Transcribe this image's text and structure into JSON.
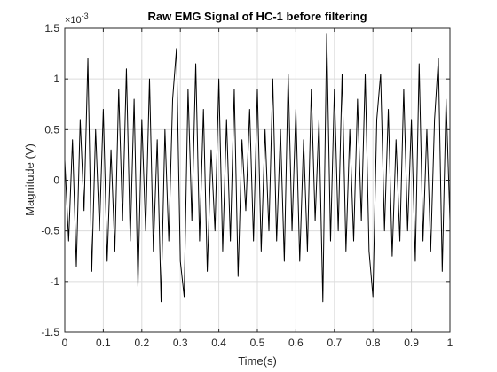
{
  "chart_data": {
    "type": "line",
    "title": "Raw EMG Signal of HC-1 before filtering",
    "xlabel": "Time(s)",
    "ylabel": "Magnitude (V)",
    "y_multiplier": {
      "base": "×10",
      "exponent": "-3"
    },
    "x": [
      0,
      0.01,
      0.02,
      0.03,
      0.04,
      0.05,
      0.06,
      0.07,
      0.08,
      0.09,
      0.1,
      0.11,
      0.12,
      0.13,
      0.14,
      0.15,
      0.16,
      0.17,
      0.18,
      0.19,
      0.2,
      0.21,
      0.22,
      0.23,
      0.24,
      0.25,
      0.26,
      0.27,
      0.28,
      0.29,
      0.3,
      0.31,
      0.32,
      0.33,
      0.34,
      0.35,
      0.36,
      0.37,
      0.38,
      0.39,
      0.4,
      0.41,
      0.42,
      0.43,
      0.44,
      0.45,
      0.46,
      0.47,
      0.48,
      0.49,
      0.5,
      0.51,
      0.52,
      0.53,
      0.54,
      0.55,
      0.56,
      0.57,
      0.58,
      0.59,
      0.6,
      0.61,
      0.62,
      0.63,
      0.64,
      0.65,
      0.66,
      0.67,
      0.68,
      0.69,
      0.7,
      0.71,
      0.72,
      0.73,
      0.74,
      0.75,
      0.76,
      0.77,
      0.78,
      0.79,
      0.8,
      0.81,
      0.82,
      0.83,
      0.84,
      0.85,
      0.86,
      0.87,
      0.88,
      0.89,
      0.9,
      0.91,
      0.92,
      0.93,
      0.94,
      0.95,
      0.96,
      0.97,
      0.98,
      0.99,
      1
    ],
    "series": [
      {
        "name": "EMG",
        "color": "#000000",
        "values": [
          0.2,
          -0.6,
          0.4,
          -0.85,
          0.6,
          -0.3,
          1.2,
          -0.9,
          0.5,
          -0.5,
          0.7,
          -0.8,
          0.3,
          -0.7,
          0.9,
          -0.4,
          1.1,
          -0.6,
          0.8,
          -1.05,
          0.6,
          -0.5,
          1.0,
          -0.7,
          0.4,
          -1.2,
          0.5,
          -0.6,
          0.8,
          1.3,
          -0.8,
          -1.15,
          0.9,
          -0.4,
          1.15,
          -0.6,
          0.7,
          -0.9,
          0.3,
          -0.5,
          1.0,
          -0.7,
          0.6,
          -0.6,
          0.9,
          -0.95,
          0.4,
          -0.3,
          0.7,
          -0.6,
          0.9,
          -0.7,
          0.5,
          -0.5,
          1.0,
          -0.6,
          0.5,
          -0.8,
          1.05,
          -0.5,
          0.7,
          -0.8,
          0.4,
          -0.7,
          0.9,
          -0.4,
          0.6,
          -1.2,
          1.45,
          -0.6,
          0.9,
          -0.5,
          1.05,
          -0.7,
          0.5,
          -0.6,
          0.8,
          -0.4,
          1.05,
          -0.7,
          -1.15,
          0.6,
          1.05,
          -0.5,
          0.7,
          -0.75,
          0.4,
          -0.6,
          0.9,
          -0.5,
          0.6,
          -0.8,
          1.15,
          -0.6,
          0.5,
          -0.7,
          0.6,
          1.2,
          -0.9,
          0.8,
          -0.4
        ]
      }
    ],
    "xlim": [
      0,
      1
    ],
    "xticks": [
      0,
      0.1,
      0.2,
      0.3,
      0.4,
      0.5,
      0.6,
      0.7,
      0.8,
      0.9,
      1
    ],
    "ylim": [
      -1.5,
      1.5
    ],
    "yticks": [
      -1.5,
      -1,
      -0.5,
      0,
      0.5,
      1,
      1.5
    ],
    "grid": true
  }
}
